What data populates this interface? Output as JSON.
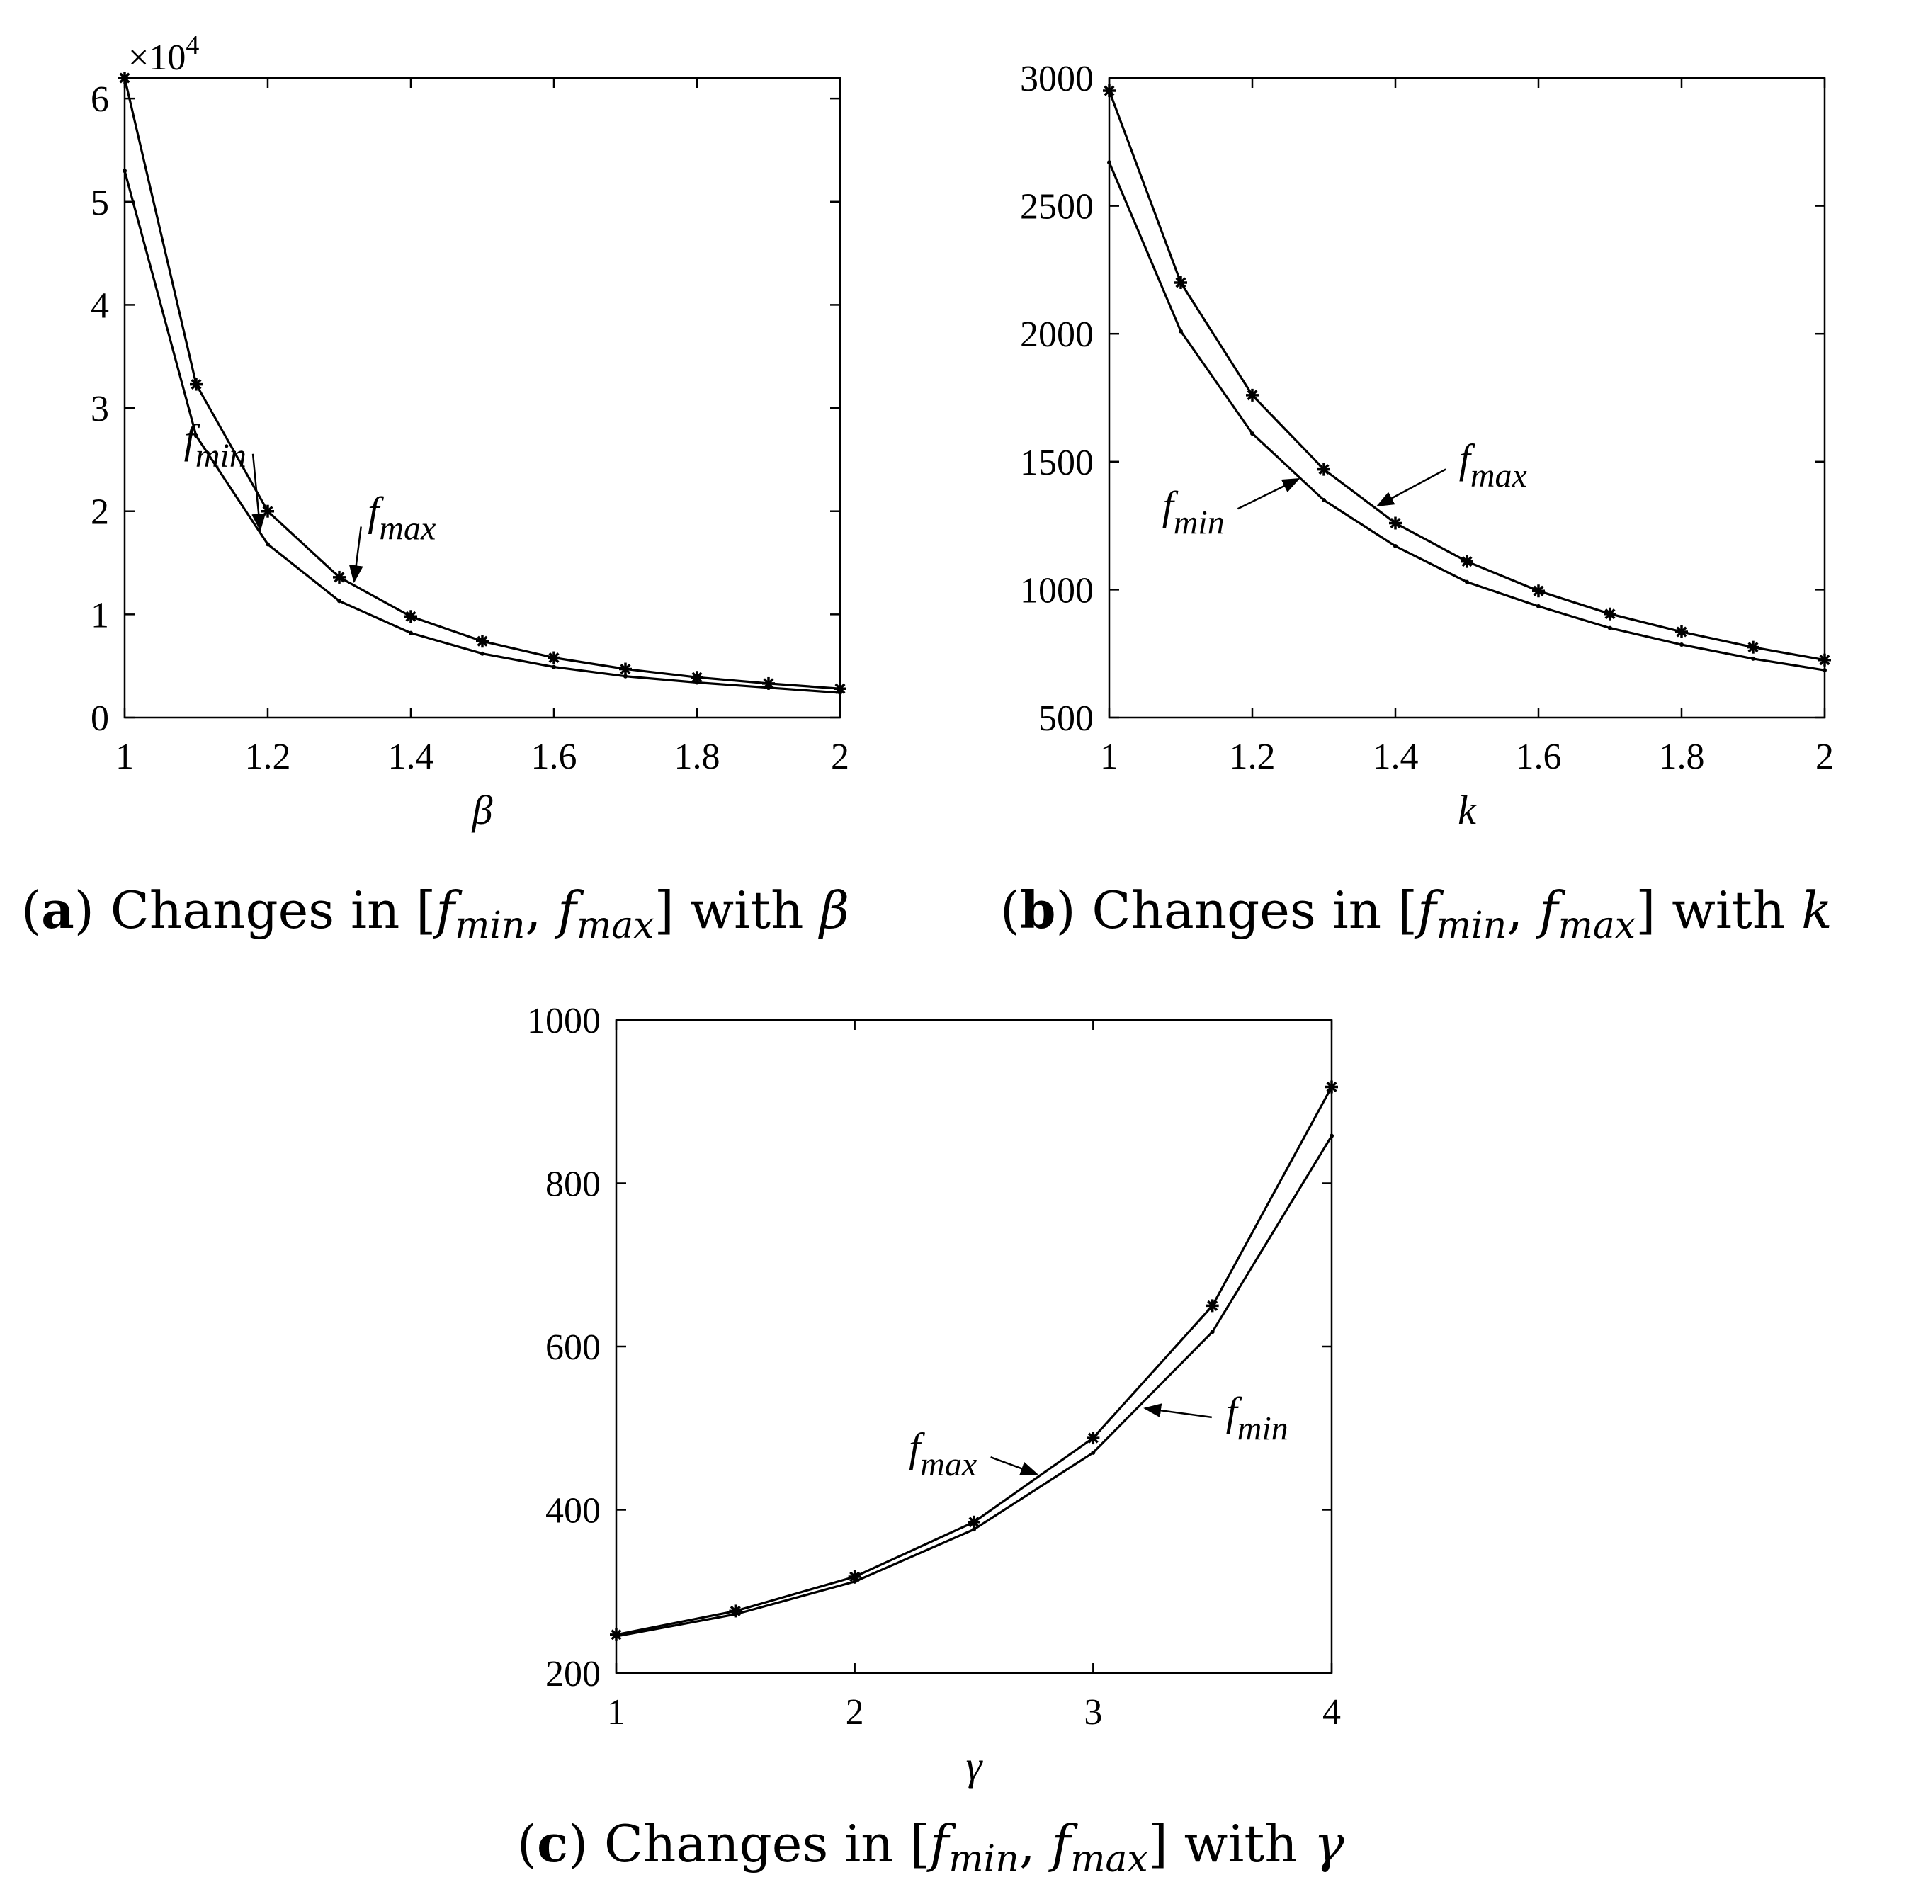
{
  "chart_data": [
    {
      "type": "line",
      "panel": "a",
      "xlabel": "β",
      "ylabel": "",
      "xlim": [
        1,
        2
      ],
      "ylim": [
        0,
        62000
      ],
      "xticks": [
        1,
        1.2,
        1.4,
        1.6,
        1.8,
        2
      ],
      "xtick_labels": [
        "1",
        "1.2",
        "1.4",
        "1.6",
        "1.8",
        "2"
      ],
      "yticks": [
        0,
        10000,
        20000,
        30000,
        40000,
        50000,
        60000
      ],
      "ytick_labels": [
        "0",
        "1",
        "2",
        "3",
        "4",
        "5",
        "6"
      ],
      "exponent_label": {
        "base": "×10",
        "power": "4"
      },
      "x": [
        1,
        1.1,
        1.2,
        1.3,
        1.4,
        1.5,
        1.6,
        1.7,
        1.8,
        1.9,
        2
      ],
      "series": [
        {
          "name": "f_max",
          "marker": "star",
          "values": [
            62000,
            32300,
            20000,
            13600,
            9800,
            7400,
            5800,
            4700,
            3900,
            3300,
            2800
          ]
        },
        {
          "name": "f_min",
          "marker": "dot",
          "values": [
            53000,
            27300,
            16800,
            11300,
            8200,
            6200,
            4900,
            4000,
            3400,
            2900,
            2400
          ]
        }
      ],
      "annotations": [
        {
          "base": "f",
          "sub": "min",
          "points_to": "f_min",
          "x": 1.19,
          "y": 17800
        },
        {
          "base": "f",
          "sub": "max",
          "points_to": "f_max",
          "x": 1.32,
          "y": 12800
        }
      ],
      "caption": {
        "prefix": "(",
        "letter": "a",
        "mid": ") Changes in  [",
        "f1": "f",
        "s1": "min",
        "comma": ", ",
        "f2": "f",
        "s2": "max",
        "close": "]  with ",
        "var": "β"
      }
    },
    {
      "type": "line",
      "panel": "b",
      "xlabel": "k",
      "ylabel": "",
      "xlim": [
        1,
        2
      ],
      "ylim": [
        500,
        3000
      ],
      "xticks": [
        1,
        1.2,
        1.4,
        1.6,
        1.8,
        2
      ],
      "xtick_labels": [
        "1",
        "1.2",
        "1.4",
        "1.6",
        "1.8",
        "2"
      ],
      "yticks": [
        500,
        1000,
        1500,
        2000,
        2500,
        3000
      ],
      "ytick_labels": [
        "500",
        "1000",
        "1500",
        "2000",
        "2500",
        "3000"
      ],
      "x": [
        1,
        1.1,
        1.2,
        1.3,
        1.4,
        1.5,
        1.6,
        1.7,
        1.8,
        1.9,
        2
      ],
      "series": [
        {
          "name": "f_max",
          "marker": "star",
          "values": [
            2950,
            2200,
            1760,
            1470,
            1260,
            1110,
            995,
            905,
            835,
            775,
            725
          ]
        },
        {
          "name": "f_min",
          "marker": "dot",
          "values": [
            2670,
            2010,
            1610,
            1350,
            1170,
            1030,
            935,
            850,
            785,
            730,
            685
          ]
        }
      ],
      "annotations": [
        {
          "base": "f",
          "sub": "min",
          "points_to": "f_min",
          "x": 1.27,
          "y": 1440
        },
        {
          "base": "f",
          "sub": "max",
          "points_to": "f_max",
          "x": 1.37,
          "y": 1320
        }
      ],
      "caption": {
        "prefix": "(",
        "letter": "b",
        "mid": ") Changes in  [",
        "f1": "f",
        "s1": "min",
        "comma": ", ",
        "f2": "f",
        "s2": "max",
        "close": "]  with ",
        "var": "k"
      }
    },
    {
      "type": "line",
      "panel": "c",
      "xlabel": "γ",
      "ylabel": "",
      "xlim": [
        1,
        4
      ],
      "ylim": [
        200,
        1000
      ],
      "xticks": [
        1,
        2,
        3,
        4
      ],
      "xtick_labels": [
        "1",
        "2",
        "3",
        "4"
      ],
      "yticks": [
        200,
        400,
        600,
        800,
        1000
      ],
      "ytick_labels": [
        "200",
        "400",
        "600",
        "800",
        "1000"
      ],
      "x": [
        1,
        1.5,
        2,
        2.5,
        3,
        3.5,
        4
      ],
      "series": [
        {
          "name": "f_max",
          "marker": "star",
          "values": [
            247,
            276,
            318,
            385,
            488,
            650,
            918
          ]
        },
        {
          "name": "f_min",
          "marker": "dot",
          "values": [
            245,
            272,
            312,
            376,
            470,
            618,
            858
          ]
        }
      ],
      "annotations": [
        {
          "base": "f",
          "sub": "max",
          "points_to": "f_max",
          "x": 2.78,
          "y": 442
        },
        {
          "base": "f",
          "sub": "min",
          "points_to": "f_min",
          "x": 3.2,
          "y": 525
        }
      ],
      "caption": {
        "prefix": "(",
        "letter": "c",
        "mid": ") Changes in  [",
        "f1": "f",
        "s1": "min",
        "comma": ", ",
        "f2": "f",
        "s2": "max",
        "close": "]  with ",
        "var": "γ"
      }
    }
  ]
}
